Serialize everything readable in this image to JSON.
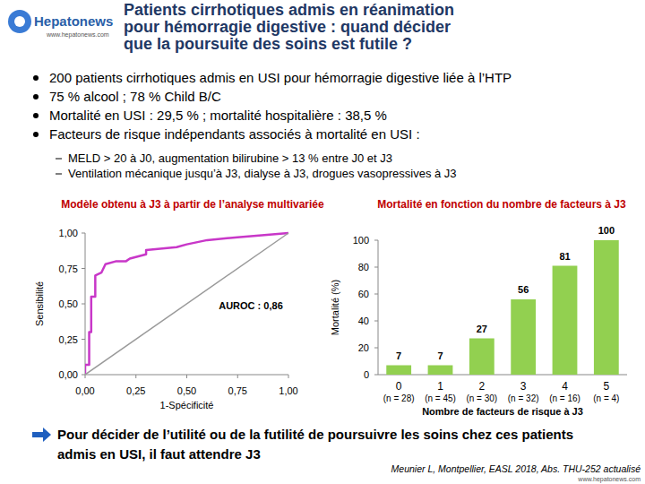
{
  "logo": {
    "name": "Hepatonews",
    "url": "www.hepatonews.com"
  },
  "header": {
    "title_lines": [
      "Patients cirrhotiques admis en réanimation",
      "pour hémorragie digestive : quand décider",
      "que la poursuite des soins est futile ?"
    ]
  },
  "bullets": [
    "200 patients cirrhotiques admis en USI pour hémorragie digestive liée à l’HTP",
    "75 % alcool ; 78 % Child B/C",
    "Mortalité en USI : 29,5 % ; mortalité hospitalière : 38,5 %",
    "Facteurs de risque indépendants associés à mortalité en USI :"
  ],
  "sub_bullets": [
    "MELD > 20 à J0, augmentation bilirubine > 13 % entre J0 et J3",
    "Ventilation mécanique jusqu’à J3, dialyse à J3, drogues vasopressives à J3"
  ],
  "chart_data": [
    {
      "type": "line",
      "title": "Modèle obtenu à J3 à partir de l’analyse multivariée",
      "x_label": "1-Spécificité",
      "y_label": "Sensibilité",
      "annotation": "AUROC : 0,86",
      "xlim": [
        0,
        1
      ],
      "ylim": [
        0,
        1
      ],
      "xticks": [
        {
          "value": 0,
          "label": "0,00"
        },
        {
          "value": 0.25,
          "label": "0,25"
        },
        {
          "value": 0.5,
          "label": "0,50"
        },
        {
          "value": 0.75,
          "label": "0,75"
        },
        {
          "value": 1,
          "label": "1,00"
        }
      ],
      "yticks": [
        {
          "value": 0,
          "label": "0,00"
        },
        {
          "value": 0.25,
          "label": "0,25"
        },
        {
          "value": 0.5,
          "label": "0,50"
        },
        {
          "value": 0.75,
          "label": "0,75"
        },
        {
          "value": 1,
          "label": "1,00"
        }
      ],
      "series": [
        {
          "color": "#c837c8",
          "line_style": "solid",
          "x": [
            0,
            0,
            0.02,
            0.02,
            0.03,
            0.03,
            0.05,
            0.05,
            0.08,
            0.1,
            0.15,
            0.2,
            0.22,
            0.3,
            0.3,
            0.45,
            0.5,
            0.6,
            0.75,
            1
          ],
          "values": [
            0,
            0.07,
            0.07,
            0.3,
            0.3,
            0.55,
            0.55,
            0.7,
            0.72,
            0.78,
            0.8,
            0.8,
            0.82,
            0.85,
            0.88,
            0.9,
            0.92,
            0.95,
            0.97,
            1
          ]
        },
        {
          "color": "#9a9a9a",
          "line_style": "solid",
          "x": [
            0,
            1
          ],
          "values": [
            0,
            1
          ]
        }
      ]
    },
    {
      "type": "bar",
      "title": "Mortalité en fonction du nombre de facteurs à J3",
      "x_label": "Nombre de facteurs de risque à J3",
      "y_label": "Mortalité (%)",
      "categories": [
        "0",
        "1",
        "2",
        "3",
        "4",
        "5"
      ],
      "n_labels": [
        "(n = 28)",
        "(n = 45)",
        "(n = 30)",
        "(n = 32)",
        "(n = 16)",
        "(n = 4)"
      ],
      "values": [
        7,
        7,
        27,
        56,
        81,
        100
      ],
      "color": "#92d050",
      "data_labels": true,
      "ylim": [
        0,
        100
      ],
      "yticks": [
        0,
        20,
        40,
        60,
        80,
        100
      ],
      "grid": false
    }
  ],
  "conclusion": "Pour décider de l’utilité ou de la futilité de poursuivre les soins chez ces patients admis en USI, il faut attendre J3",
  "citation": "Meunier L, Montpellier, EASL 2018, Abs. THU-252 actualisé",
  "footer_url": "www.hepatonews.com"
}
